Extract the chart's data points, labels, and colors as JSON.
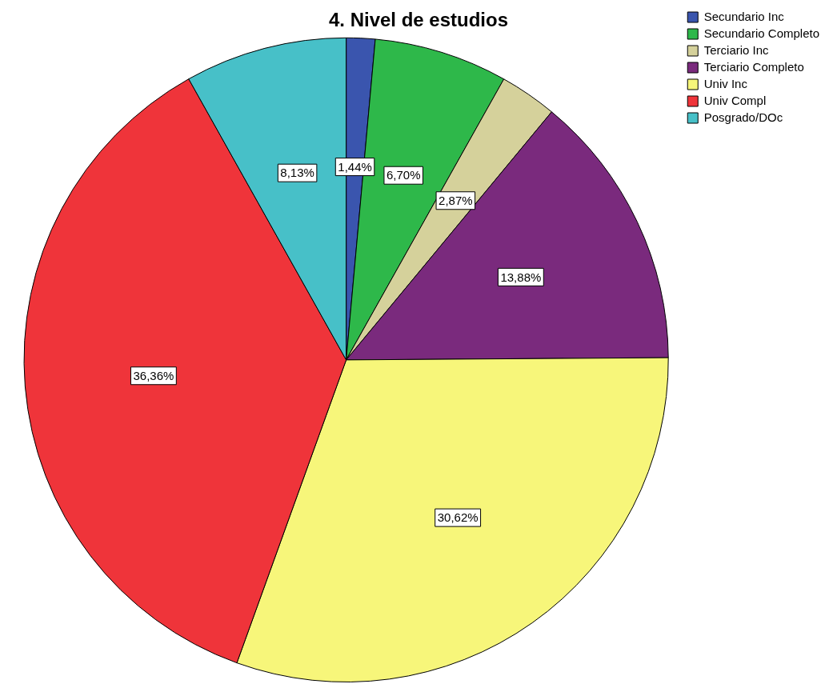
{
  "chart_data": {
    "type": "pie",
    "title": "4. Nivel de estudios",
    "categories": [
      "Secundario Inc",
      "Secundario Completo",
      "Terciario Inc",
      "Terciario Completo",
      "Univ Inc",
      "Univ Compl",
      "Posgrado/DOc"
    ],
    "values": [
      1.44,
      6.7,
      2.87,
      13.88,
      30.62,
      36.36,
      8.13
    ],
    "colors": [
      "#3a55ae",
      "#2eb84a",
      "#d5d19b",
      "#7a2a7d",
      "#f7f67a",
      "#ef343a",
      "#47c0c8"
    ],
    "value_labels": [
      "1,44%",
      "6,70%",
      "2,87%",
      "13,88%",
      "30,62%",
      "36,36%",
      "8,13%"
    ],
    "legend": "top right"
  }
}
